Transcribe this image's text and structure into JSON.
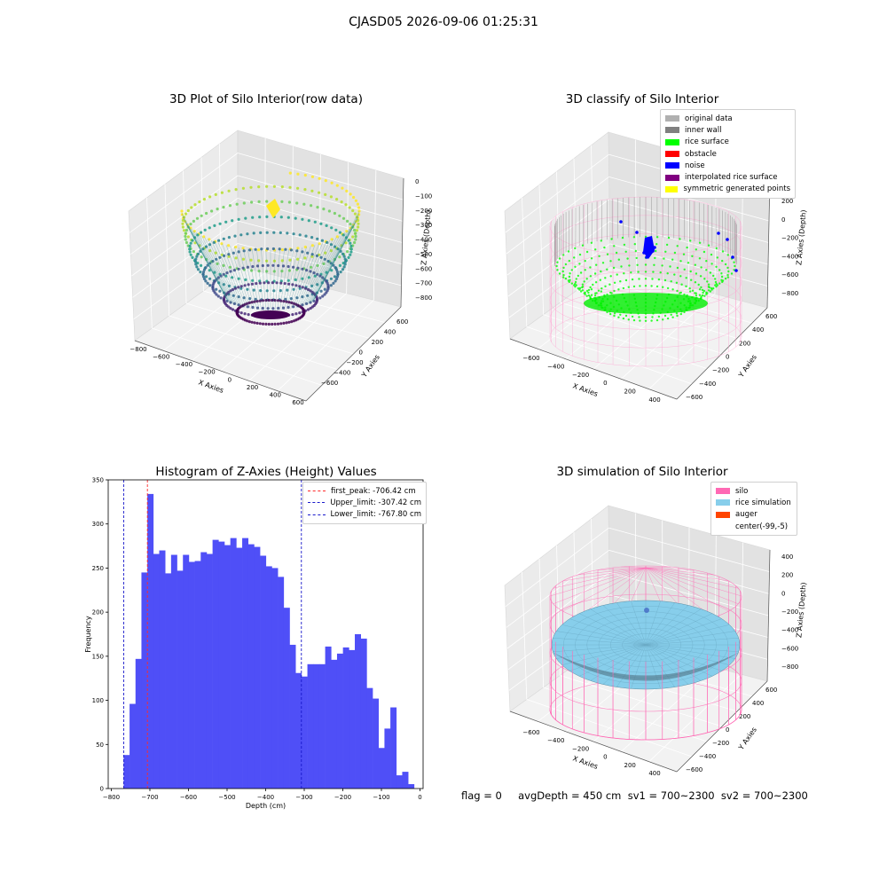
{
  "figure": {
    "suptitle": "CJASD05 2026-09-06 01:25:31",
    "footer": "flag = 0     avgDepth = 450 cm  sv1 = 700~2300  sv2 = 700~2300"
  },
  "colors": {
    "histogram_bar": "#4f4ff7",
    "first_peak": "#ff2a2a",
    "limits": "#1a1acc",
    "silo": "#ff69b4",
    "rice_simulation": "#87ceeb",
    "auger": "#ff4500"
  },
  "panels": {
    "raw": {
      "title": "3D Plot of Silo Interior(row data)",
      "xlabel": "X Axies",
      "ylabel": "Y Axies",
      "zlabel": "Z Axies (Depth)",
      "x_ticks": [
        "−800",
        "−600",
        "−400",
        "−200",
        "0",
        "200",
        "400",
        "600"
      ],
      "y_ticks": [
        "−600",
        "−400",
        "−200",
        "0",
        "200",
        "400",
        "600"
      ],
      "z_ticks": [
        "0",
        "−100",
        "−200",
        "−300",
        "−400",
        "−500",
        "−600",
        "−700",
        "−800"
      ],
      "colormap": "viridis"
    },
    "classify": {
      "title": "3D classify of Silo Interior",
      "xlabel": "X Axies",
      "ylabel": "Y Axies",
      "zlabel": "Z Axies (Depth)",
      "x_ticks": [
        "−600",
        "−400",
        "−200",
        "0",
        "200",
        "400"
      ],
      "y_ticks": [
        "−600",
        "−400",
        "−200",
        "0",
        "200",
        "400",
        "600"
      ],
      "z_ticks": [
        "200",
        "0",
        "−200",
        "−400",
        "−600",
        "−800"
      ],
      "legend": [
        {
          "label": "original data",
          "color": "#b0b0b0"
        },
        {
          "label": "inner wall",
          "color": "#808080"
        },
        {
          "label": "rice surface",
          "color": "#00ff00"
        },
        {
          "label": "obstacle",
          "color": "#ff0000"
        },
        {
          "label": "noise",
          "color": "#0000ff"
        },
        {
          "label": "interpolated rice surface",
          "color": "#800080"
        },
        {
          "label": "symmetric generated points",
          "color": "#ffff00"
        }
      ]
    },
    "simulation": {
      "title": "3D simulation of Silo Interior",
      "xlabel": "X Axies",
      "ylabel": "Y Axies",
      "zlabel": "Z Axies (Depth)",
      "x_ticks": [
        "−600",
        "−400",
        "−200",
        "0",
        "200",
        "400"
      ],
      "y_ticks": [
        "−600",
        "−400",
        "−200",
        "0",
        "200",
        "400",
        "600"
      ],
      "z_ticks": [
        "400",
        "200",
        "0",
        "−200",
        "−400",
        "−600",
        "−800"
      ],
      "legend": [
        {
          "label": "silo",
          "color": "#ff69b4"
        },
        {
          "label": "rice simulation",
          "color": "#87ceeb"
        },
        {
          "label": "auger",
          "color": "#ff4500"
        },
        {
          "label": "center(-99,-5)",
          "color": ""
        }
      ]
    }
  },
  "chart_data": {
    "type": "bar",
    "title": "Histogram of Z-Axies (Height) Values",
    "xlabel": "Depth (cm)",
    "ylabel": "Frequency",
    "xlim": [
      -808,
      8
    ],
    "ylim": [
      0,
      350
    ],
    "x_ticks": [
      -800,
      -700,
      -600,
      -500,
      -400,
      -300,
      -200,
      -100,
      0
    ],
    "x_tick_labels": [
      "−800",
      "−700",
      "−600",
      "−500",
      "−400",
      "−300",
      "−200",
      "−100",
      "0"
    ],
    "y_ticks": [
      0,
      50,
      100,
      150,
      200,
      250,
      300,
      350
    ],
    "bin_start": -768,
    "bin_width": 15.36,
    "counts": [
      38,
      96,
      147,
      245,
      334,
      266,
      270,
      244,
      265,
      247,
      265,
      257,
      258,
      268,
      266,
      282,
      280,
      276,
      284,
      273,
      284,
      277,
      274,
      264,
      252,
      250,
      240,
      205,
      163,
      131,
      127,
      141,
      141,
      141,
      161,
      146,
      153,
      160,
      157,
      175,
      170,
      114,
      102,
      46,
      68,
      92,
      15,
      19,
      5
    ],
    "vlines": [
      {
        "label": "first_peak: -706.42 cm",
        "x": -706.42,
        "color": "#ff2a2a"
      },
      {
        "label": "Upper_limit: -307.42 cm",
        "x": -307.42,
        "color": "#1a1acc"
      },
      {
        "label": "Lower_limit: -767.80 cm",
        "x": -767.8,
        "color": "#1a1acc"
      }
    ]
  }
}
